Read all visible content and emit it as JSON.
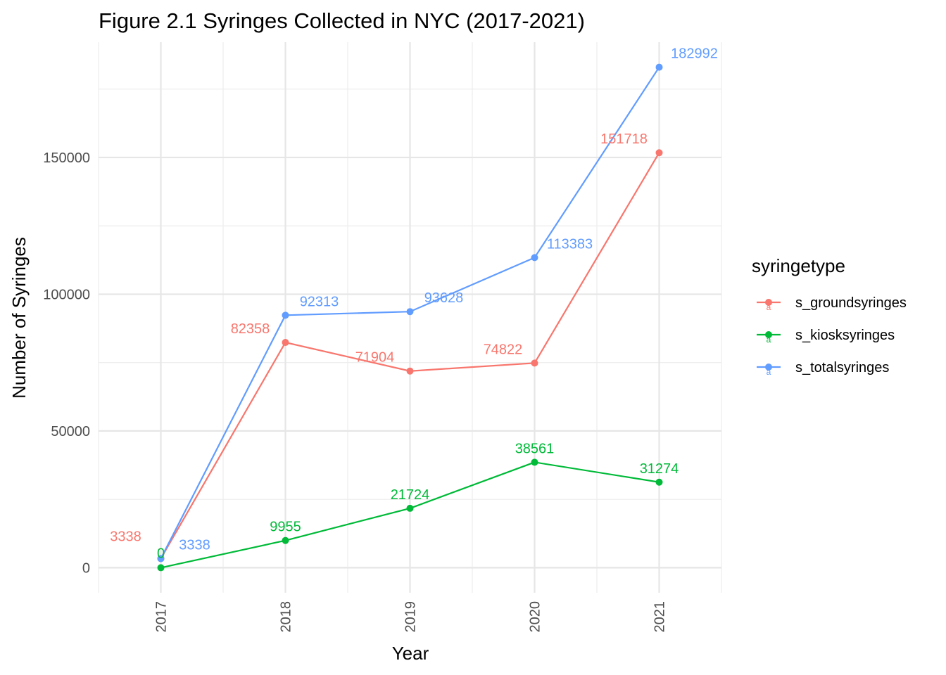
{
  "chart_data": {
    "type": "line",
    "title": "Figure 2.1 Syringes Collected in NYC (2017-2021)",
    "xlabel": "Year",
    "ylabel": "Number of Syringes",
    "x": [
      "2017",
      "2018",
      "2019",
      "2020",
      "2021"
    ],
    "xlim": [
      2016.5,
      2021.5
    ],
    "ylim": [
      -9150,
      192140
    ],
    "yticks": [
      0,
      50000,
      100000,
      150000
    ],
    "ytick_labels": [
      "0",
      "50000",
      "100000",
      "150000"
    ],
    "grid": true,
    "x_tick_labels_rotated": true,
    "legend": {
      "title": "syringetype",
      "position": "right",
      "key_glyph_text": "a"
    },
    "series": [
      {
        "name": "s_groundsyringes",
        "color": "#F8766D",
        "values": [
          3338,
          82358,
          71904,
          74822,
          151718
        ],
        "labels": [
          "3338",
          "82358",
          "71904",
          "74822",
          "151718"
        ]
      },
      {
        "name": "s_kiosksyringes",
        "color": "#00BA38",
        "values": [
          0,
          9955,
          21724,
          38561,
          31274
        ],
        "labels": [
          "0",
          "9955",
          "21724",
          "38561",
          "31274"
        ]
      },
      {
        "name": "s_totalsyringes",
        "color": "#619CFF",
        "values": [
          3338,
          92313,
          93628,
          113383,
          182992
        ],
        "labels": [
          "3338",
          "92313",
          "93628",
          "113383",
          "182992"
        ]
      }
    ]
  }
}
